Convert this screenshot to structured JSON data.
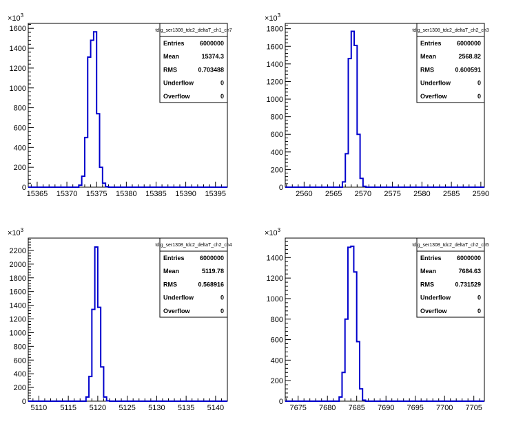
{
  "chart_data": [
    {
      "type": "histogram",
      "stats": {
        "title": "tdig_ser1308_tdc2_deltaT_ch1_ch7",
        "rows": [
          {
            "label": "Entries",
            "value": "6000000"
          },
          {
            "label": "Mean",
            "value": "15374.3"
          },
          {
            "label": "RMS",
            "value": "0.703488"
          },
          {
            "label": "Underflow",
            "value": "0"
          },
          {
            "label": "Overflow",
            "value": "0"
          }
        ]
      },
      "y_exponent": "10",
      "y_exponent_power": "3",
      "xlim": [
        15363.5,
        15397.0
      ],
      "ylim": [
        0,
        1650
      ],
      "x_ticks": [
        15365,
        15370,
        15375,
        15380,
        15385,
        15390,
        15395
      ],
      "x_tick_labels": [
        "15365",
        "15370",
        "15375",
        "15380",
        "15385",
        "15390",
        "15395"
      ],
      "y_ticks": [
        0,
        200,
        400,
        600,
        800,
        1000,
        1200,
        1400,
        1600
      ],
      "y_tick_labels": [
        "0",
        "200",
        "400",
        "600",
        "800",
        "1000",
        "1200",
        "1400",
        "1600"
      ],
      "bin_width": 0.5,
      "bins": [
        {
          "x": 15372.0,
          "y": 20
        },
        {
          "x": 15372.5,
          "y": 110
        },
        {
          "x": 15373.0,
          "y": 500
        },
        {
          "x": 15373.5,
          "y": 1310
        },
        {
          "x": 15374.0,
          "y": 1480
        },
        {
          "x": 15374.5,
          "y": 1565
        },
        {
          "x": 15375.0,
          "y": 740
        },
        {
          "x": 15375.5,
          "y": 200
        },
        {
          "x": 15376.0,
          "y": 40
        },
        {
          "x": 15376.5,
          "y": 5
        }
      ]
    },
    {
      "type": "histogram",
      "stats": {
        "title": "tdig_ser1308_tdc2_deltaT_ch2_ch3",
        "rows": [
          {
            "label": "Entries",
            "value": "6000000"
          },
          {
            "label": "Mean",
            "value": "2568.82"
          },
          {
            "label": "RMS",
            "value": "0.600591"
          },
          {
            "label": "Underflow",
            "value": "0"
          },
          {
            "label": "Overflow",
            "value": "0"
          }
        ]
      },
      "y_exponent": "10",
      "y_exponent_power": "3",
      "xlim": [
        2556.8,
        2590.6
      ],
      "ylim": [
        0,
        1860
      ],
      "x_ticks": [
        2560,
        2565,
        2570,
        2575,
        2580,
        2585,
        2590
      ],
      "x_tick_labels": [
        "2560",
        "2565",
        "2570",
        "2575",
        "2580",
        "2585",
        "2590"
      ],
      "y_ticks": [
        0,
        200,
        400,
        600,
        800,
        1000,
        1200,
        1400,
        1600,
        1800
      ],
      "y_tick_labels": [
        "0",
        "200",
        "400",
        "600",
        "800",
        "1000",
        "1200",
        "1400",
        "1600",
        "1800"
      ],
      "bin_width": 0.5,
      "bins": [
        {
          "x": 2566.5,
          "y": 60
        },
        {
          "x": 2567.0,
          "y": 380
        },
        {
          "x": 2567.5,
          "y": 1460
        },
        {
          "x": 2568.0,
          "y": 1770
        },
        {
          "x": 2568.5,
          "y": 1610
        },
        {
          "x": 2569.0,
          "y": 600
        },
        {
          "x": 2569.5,
          "y": 100
        },
        {
          "x": 2570.0,
          "y": 10
        }
      ]
    },
    {
      "type": "histogram",
      "stats": {
        "title": "tdig_ser1308_tdc2_deltaT_ch2_ch4",
        "rows": [
          {
            "label": "Entries",
            "value": "6000000"
          },
          {
            "label": "Mean",
            "value": "5119.78"
          },
          {
            "label": "RMS",
            "value": "0.568916"
          },
          {
            "label": "Underflow",
            "value": "0"
          },
          {
            "label": "Overflow",
            "value": "0"
          }
        ]
      },
      "y_exponent": "10",
      "y_exponent_power": "3",
      "xlim": [
        5108.2,
        5142.0
      ],
      "ylim": [
        0,
        2380
      ],
      "x_ticks": [
        5110,
        5115,
        5120,
        5125,
        5130,
        5135,
        5140
      ],
      "x_tick_labels": [
        "5110",
        "5115",
        "5120",
        "5125",
        "5130",
        "5135",
        "5140"
      ],
      "y_ticks": [
        0,
        200,
        400,
        600,
        800,
        1000,
        1200,
        1400,
        1600,
        1800,
        2000,
        2200
      ],
      "y_tick_labels": [
        "0",
        "200",
        "400",
        "600",
        "800",
        "1000",
        "1200",
        "1400",
        "1600",
        "1800",
        "2000",
        "2200"
      ],
      "bin_width": 0.5,
      "bins": [
        {
          "x": 5118.0,
          "y": 60
        },
        {
          "x": 5118.5,
          "y": 360
        },
        {
          "x": 5119.0,
          "y": 1340
        },
        {
          "x": 5119.5,
          "y": 2250
        },
        {
          "x": 5120.0,
          "y": 1370
        },
        {
          "x": 5120.5,
          "y": 500
        },
        {
          "x": 5121.0,
          "y": 60
        },
        {
          "x": 5121.5,
          "y": 5
        }
      ]
    },
    {
      "type": "histogram",
      "stats": {
        "title": "tdig_ser1308_tdc2_deltaT_ch2_ch5",
        "rows": [
          {
            "label": "Entries",
            "value": "6000000"
          },
          {
            "label": "Mean",
            "value": "7684.63"
          },
          {
            "label": "RMS",
            "value": "0.731529"
          },
          {
            "label": "Underflow",
            "value": "0"
          },
          {
            "label": "Overflow",
            "value": "0"
          }
        ]
      },
      "y_exponent": "10",
      "y_exponent_power": "3",
      "xlim": [
        7672.8,
        7706.8
      ],
      "ylim": [
        0,
        1590
      ],
      "x_ticks": [
        7675,
        7680,
        7685,
        7690,
        7695,
        7700,
        7705
      ],
      "x_tick_labels": [
        "7675",
        "7680",
        "7685",
        "7690",
        "7695",
        "7700",
        "7705"
      ],
      "y_ticks": [
        0,
        200,
        400,
        600,
        800,
        1000,
        1200,
        1400
      ],
      "y_tick_labels": [
        "0",
        "200",
        "400",
        "600",
        "800",
        "1000",
        "1200",
        "1400"
      ],
      "bin_width": 0.5,
      "bins": [
        {
          "x": 7682.0,
          "y": 40
        },
        {
          "x": 7682.5,
          "y": 280
        },
        {
          "x": 7683.0,
          "y": 800
        },
        {
          "x": 7683.5,
          "y": 1500
        },
        {
          "x": 7684.0,
          "y": 1510
        },
        {
          "x": 7684.5,
          "y": 1260
        },
        {
          "x": 7685.0,
          "y": 580
        },
        {
          "x": 7685.5,
          "y": 120
        },
        {
          "x": 7686.0,
          "y": 10
        }
      ]
    }
  ]
}
